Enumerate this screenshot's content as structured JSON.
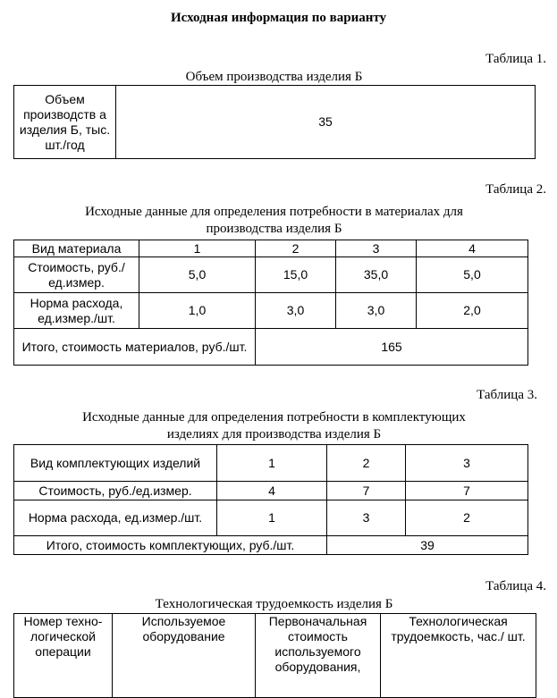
{
  "title": "Исходная информация по варианту",
  "t1": {
    "label": "Таблица 1.",
    "caption": "Объем производства изделия Б",
    "header": "Объем производств а изделия Б, тыс. шт./год",
    "value": "35"
  },
  "t2": {
    "label": "Таблица 2.",
    "caption1": "Исходные данные для определения потребности в материалах для",
    "caption2": "производства изделия Б",
    "rows": [
      {
        "h": "Вид материала",
        "v": [
          "1",
          "2",
          "3",
          "4"
        ]
      },
      {
        "h": "Стоимость, руб./ед.измер.",
        "v": [
          "5,0",
          "15,0",
          "35,0",
          "5,0"
        ]
      },
      {
        "h": "Норма расхода, ед.измер./шт.",
        "v": [
          "1,0",
          "3,0",
          "3,0",
          "2,0"
        ]
      }
    ],
    "total_label": "Итого, стоимость материалов, руб./шт.",
    "total": "165"
  },
  "t3": {
    "label": "Таблица 3.",
    "caption1": "Исходные данные для определения потребности в  комплектующих",
    "caption2": "изделиях для производства изделия Б",
    "rows": [
      {
        "h": "Вид комплектующих изделий",
        "v": [
          "1",
          "2",
          "3"
        ]
      },
      {
        "h": "Стоимость, руб./ед.измер.",
        "v": [
          "4",
          "7",
          "7"
        ]
      },
      {
        "h": "Норма расхода, ед.измер./шт.",
        "v": [
          "1",
          "3",
          "2"
        ]
      }
    ],
    "total_label": "Итого, стоимость комплектующих, руб./шт.",
    "total": "39"
  },
  "t4": {
    "label": "Таблица 4.",
    "caption": "Технологическая трудоемкость изделия Б",
    "headers": [
      "Номер техно-логической операции",
      "Используемое оборудование",
      "Первоначальная стоимость используемого оборудования,",
      "Технологическая трудоемкость, час./ шт."
    ]
  }
}
